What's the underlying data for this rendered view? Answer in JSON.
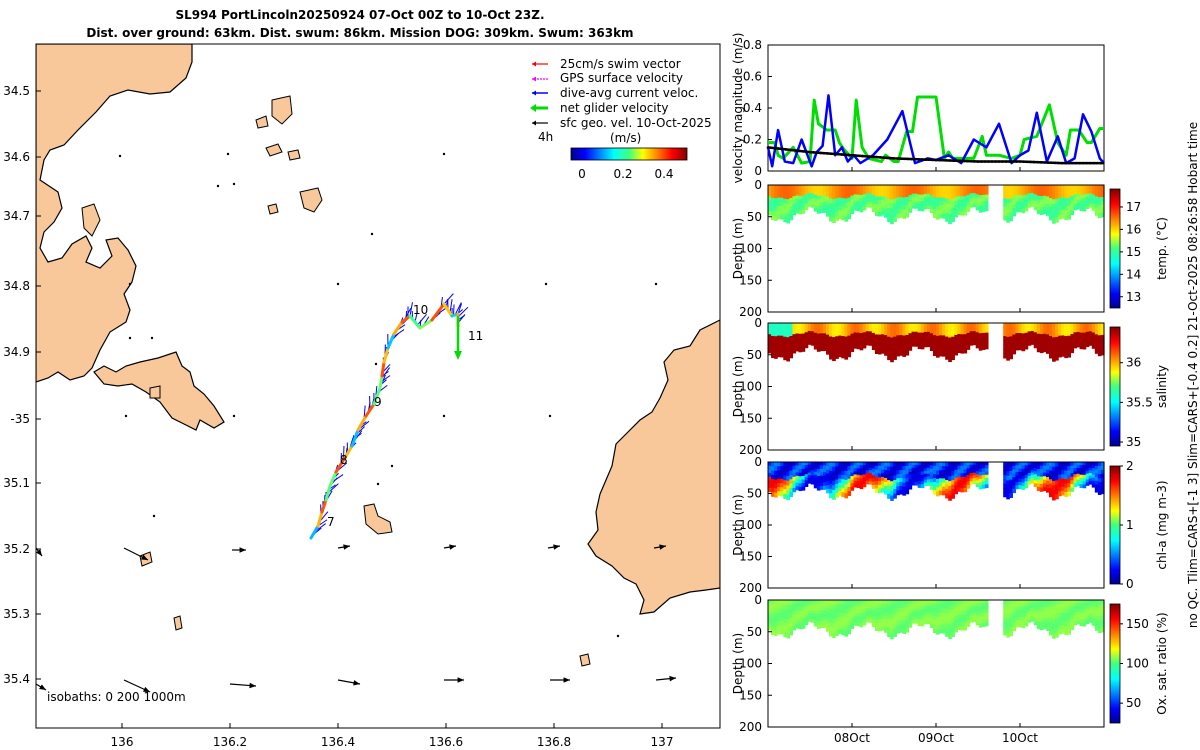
{
  "title": {
    "line1": "SL994 PortLincoln20250924 07-Oct 00Z to 10-Oct 23Z.",
    "line2": "Dist. over ground: 63km. Dist. swum: 86km. Mission DOG: 309km. Swum: 363km"
  },
  "colors": {
    "land": "#f8c89a",
    "swim": "#ff0000",
    "gps": "#ff00ff",
    "current": "#0000ff",
    "net": "#00dd00",
    "geo": "#000000"
  },
  "map": {
    "lon_ticks": [
      "136",
      "136.2",
      "136.4",
      "136.6",
      "136.8",
      "137"
    ],
    "lat_ticks": [
      "34.5",
      "34.6",
      "34.7",
      "34.8",
      "34.9",
      "-35",
      "35.1",
      "35.2",
      "35.3",
      "35.4"
    ],
    "legend": [
      {
        "label": "25cm/s swim vector",
        "color": "#ff0000"
      },
      {
        "label": "GPS surface velocity",
        "color": "#ff00ff"
      },
      {
        "label": "dive-avg current veloc.",
        "color": "#0000ff"
      },
      {
        "label": "net glider velocity",
        "color": "#00dd00"
      },
      {
        "label": "sfc geo. vel. 10-Oct-2025",
        "color": "#000000"
      }
    ],
    "colorbar": {
      "step_label": "4h",
      "unit": "(m/s)",
      "ticks": [
        "0",
        "0.2",
        "0.4"
      ]
    },
    "day_labels": [
      "7",
      "8",
      "9",
      "10",
      "11"
    ],
    "isobath_note": "isobaths: 0   200  1000m"
  },
  "chart_data": [
    {
      "type": "line",
      "title": "velocity magnitude",
      "ylabel": "velocity magnitude (m/s)",
      "ylim": [
        0,
        0.8
      ],
      "yticks": [
        "0",
        "0.2",
        "0.4",
        "0.6",
        "0.8"
      ],
      "xlim_days": [
        0,
        4
      ],
      "series": [
        {
          "name": "net glider velocity",
          "color": "#00dd00",
          "x": [
            0.0,
            0.08,
            0.12,
            0.18,
            0.3,
            0.4,
            0.5,
            0.55,
            0.6,
            0.7,
            0.8,
            0.85,
            0.9,
            1.0,
            1.05,
            1.12,
            1.2,
            1.35,
            1.4,
            1.5,
            1.55,
            1.65,
            1.72,
            1.78,
            1.85,
            2.0,
            2.1,
            2.15,
            2.2,
            2.35,
            2.45,
            2.55,
            2.6,
            2.75,
            2.9,
            3.0,
            3.05,
            3.2,
            3.35,
            3.45,
            3.55,
            3.6,
            3.7,
            3.8,
            3.85,
            3.95,
            4.0
          ],
          "y": [
            0.18,
            0.18,
            0.1,
            0.08,
            0.15,
            0.05,
            0.06,
            0.45,
            0.3,
            0.26,
            0.26,
            0.18,
            0.14,
            0.08,
            0.45,
            0.15,
            0.08,
            0.06,
            0.1,
            0.06,
            0.06,
            0.25,
            0.25,
            0.47,
            0.47,
            0.47,
            0.08,
            0.12,
            0.08,
            0.08,
            0.08,
            0.22,
            0.1,
            0.1,
            0.08,
            0.1,
            0.2,
            0.22,
            0.42,
            0.18,
            0.1,
            0.26,
            0.26,
            0.18,
            0.18,
            0.27,
            0.27
          ]
        },
        {
          "name": "dive-avg current",
          "color": "#0000ff",
          "x": [
            0.0,
            0.05,
            0.12,
            0.2,
            0.3,
            0.4,
            0.52,
            0.58,
            0.65,
            0.72,
            0.8,
            0.88,
            0.95,
            1.02,
            1.1,
            1.25,
            1.42,
            1.6,
            1.75,
            1.9,
            2.0,
            2.15,
            2.3,
            2.45,
            2.6,
            2.75,
            2.9,
            3.0,
            3.1,
            3.2,
            3.32,
            3.45,
            3.55,
            3.65,
            3.75,
            3.85,
            3.95,
            4.0
          ],
          "y": [
            0.15,
            0.03,
            0.26,
            0.06,
            0.05,
            0.2,
            0.03,
            0.12,
            0.16,
            0.48,
            0.1,
            0.15,
            0.06,
            0.1,
            0.05,
            0.1,
            0.2,
            0.38,
            0.05,
            0.08,
            0.07,
            0.1,
            0.05,
            0.2,
            0.15,
            0.3,
            0.05,
            0.1,
            0.13,
            0.37,
            0.06,
            0.22,
            0.05,
            0.08,
            0.36,
            0.25,
            0.08,
            0.05
          ]
        },
        {
          "name": "sfc geo. vel.",
          "color": "#000000",
          "x": [
            0.0,
            0.5,
            1.0,
            1.5,
            2.0,
            2.5,
            3.0,
            3.5,
            4.0
          ],
          "y": [
            0.15,
            0.12,
            0.1,
            0.08,
            0.07,
            0.06,
            0.06,
            0.05,
            0.05
          ]
        }
      ]
    },
    {
      "type": "heatmap",
      "variable": "temp.",
      "colorbar_label": "temp. (°C)",
      "ylabel": "Depth (m)",
      "ylim": [
        0,
        200
      ],
      "yticks": [
        "0",
        "50",
        "100",
        "150",
        "200"
      ],
      "clim": [
        12.5,
        17.8
      ],
      "cticks": [
        "13",
        "14",
        "15",
        "16",
        "17"
      ],
      "surface_value": 16.3,
      "deep_value": 15.2,
      "max_depth": 55
    },
    {
      "type": "heatmap",
      "variable": "salinity",
      "colorbar_label": "salinity",
      "ylabel": "Depth (m)",
      "ylim": [
        0,
        200
      ],
      "yticks": [
        "0",
        "50",
        "100",
        "150",
        "200"
      ],
      "clim": [
        34.95,
        36.45
      ],
      "cticks": [
        "35",
        "35.5",
        "36"
      ],
      "surface_value": 36.0,
      "deep_value": 36.4,
      "max_depth": 55
    },
    {
      "type": "heatmap",
      "variable": "chl-a",
      "colorbar_label": "chl-a (mg m-3)",
      "ylabel": "Depth (m)",
      "ylim": [
        0,
        200
      ],
      "yticks": [
        "0",
        "50",
        "100",
        "150",
        "200"
      ],
      "clim": [
        0,
        2
      ],
      "cticks": [
        "0",
        "1",
        "2"
      ],
      "surface_value": 0.3,
      "deep_value": 1.6,
      "max_depth": 55
    },
    {
      "type": "heatmap",
      "variable": "Ox. sat. ratio",
      "colorbar_label": "Ox. sat. ratio (%)",
      "ylabel": "Depth (m)",
      "ylim": [
        0,
        200
      ],
      "yticks": [
        "0",
        "50",
        "100",
        "150",
        "200"
      ],
      "clim": [
        25,
        175
      ],
      "cticks": [
        "50",
        "100",
        "150"
      ],
      "surface_value": 105,
      "deep_value": 105,
      "max_depth": 55
    }
  ],
  "time_axis": {
    "labels": [
      "08Oct",
      "09Oct",
      "10Oct"
    ],
    "day_positions": [
      1,
      2,
      3
    ]
  },
  "side_text": {
    "line1": "no QC. Tlim=CARS+[-1 3] Slim=CARS+[-0.4 0.2] 21-Oct-2025 08:26:58 Hobart time"
  }
}
